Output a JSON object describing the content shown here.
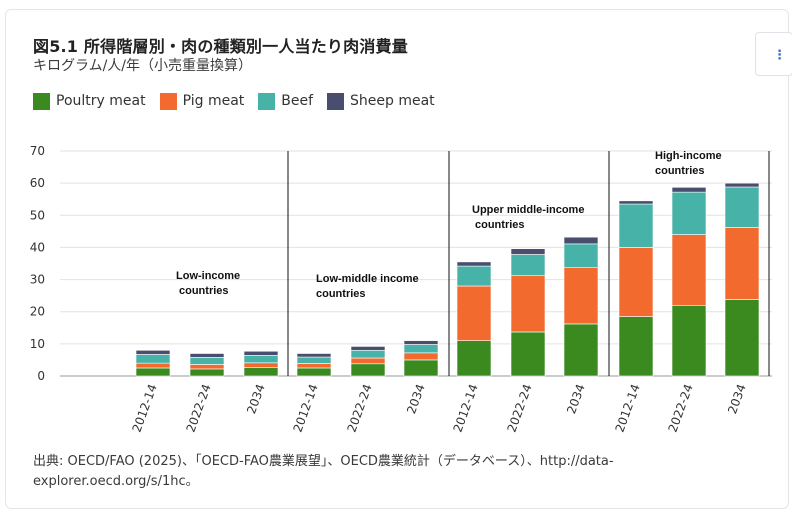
{
  "title": "図5.1 所得階層別・肉の種類別一人当たり肉消費量",
  "subtitle": "キログラム/人/年（小売重量換算）",
  "source": "出典: OECD/FAO (2025)、「OECD-FAO農業展望」、OECD農業統計（データベース）、http://data-explorer.oecd.org/s/1hc。",
  "menu_icon": "⋮",
  "colors": {
    "poultry": "#3a8a1f",
    "pig": "#f26a2e",
    "beef": "#47b2a8",
    "sheep": "#4a4e6e"
  },
  "chart_data": {
    "type": "bar",
    "stacked": true,
    "ylim": [
      0,
      70
    ],
    "yticks": [
      0,
      10,
      20,
      30,
      40,
      50,
      60,
      70
    ],
    "grid": true,
    "legend_position": "top-left",
    "groups": [
      {
        "label_lines": [
          "Low-income",
          "countries"
        ],
        "categories": [
          "2012-14",
          "2022-24",
          "2034"
        ]
      },
      {
        "label_lines": [
          "Low-middle income",
          "countries"
        ],
        "categories": [
          "2012-14",
          "2022-24",
          "2034"
        ]
      },
      {
        "label_lines": [
          "Upper middle-income",
          "countries"
        ],
        "categories": [
          "2012-14",
          "2022-24",
          "2034"
        ]
      },
      {
        "label_lines": [
          "High-income",
          "countries"
        ],
        "categories": [
          "2012-14",
          "2022-24",
          "2034"
        ]
      }
    ],
    "series": [
      {
        "name": "Poultry meat",
        "color": "#3a8a1f",
        "values": [
          2.5,
          2.2,
          2.6,
          2.5,
          3.8,
          5.0,
          11.0,
          13.7,
          16.2,
          18.5,
          22.0,
          23.8
        ]
      },
      {
        "name": "Pig meat",
        "color": "#f26a2e",
        "values": [
          1.5,
          1.4,
          1.5,
          1.4,
          1.8,
          2.2,
          17.0,
          17.5,
          17.5,
          21.5,
          22.0,
          22.4
        ]
      },
      {
        "name": "Beef",
        "color": "#47b2a8",
        "values": [
          2.7,
          2.2,
          2.3,
          2.0,
          2.4,
          2.6,
          6.2,
          6.6,
          7.4,
          13.5,
          13.2,
          12.6
        ]
      },
      {
        "name": "Sheep meat",
        "color": "#4a4e6e",
        "values": [
          1.3,
          1.2,
          1.3,
          1.1,
          1.2,
          1.2,
          1.3,
          1.8,
          2.1,
          1.0,
          1.5,
          1.2
        ]
      }
    ]
  }
}
